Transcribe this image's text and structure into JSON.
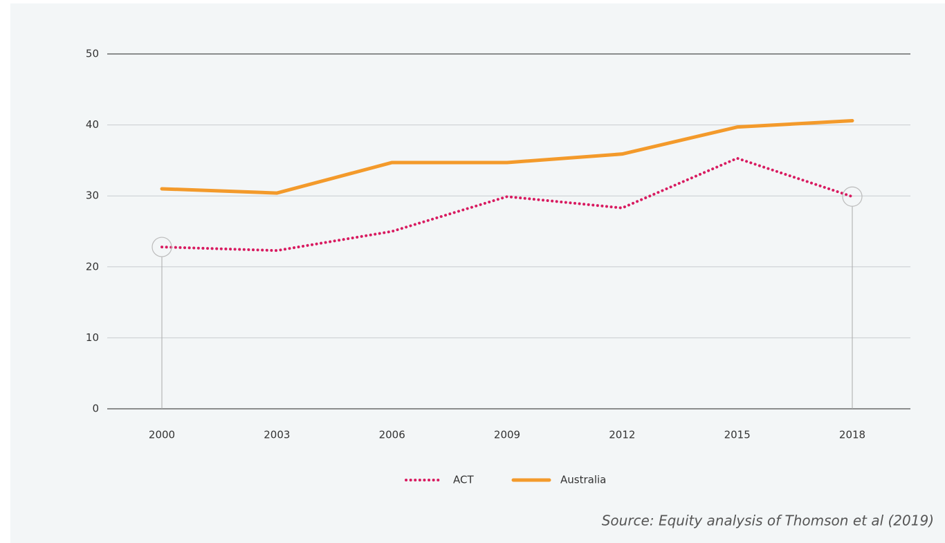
{
  "chart_data": {
    "type": "line",
    "categories": [
      "2000",
      "2003",
      "2006",
      "2009",
      "2012",
      "2015",
      "2018"
    ],
    "series": [
      {
        "name": "ACT",
        "color": "#d81b60",
        "style": "dotted",
        "values": [
          22.8,
          22.3,
          25.0,
          29.9,
          28.3,
          35.3,
          29.9
        ]
      },
      {
        "name": "Australia",
        "color": "#f39a2b",
        "style": "solid",
        "values": [
          31.0,
          30.4,
          34.7,
          34.7,
          35.9,
          39.7,
          40.6
        ]
      }
    ],
    "ylim": [
      0,
      50
    ],
    "yticks": [
      0,
      10,
      20,
      30,
      40,
      50
    ],
    "grid": true,
    "highlighted_points": [
      0,
      6
    ],
    "legend": "bottom",
    "source": "Source: Equity analysis of Thomson et al (2019)"
  }
}
